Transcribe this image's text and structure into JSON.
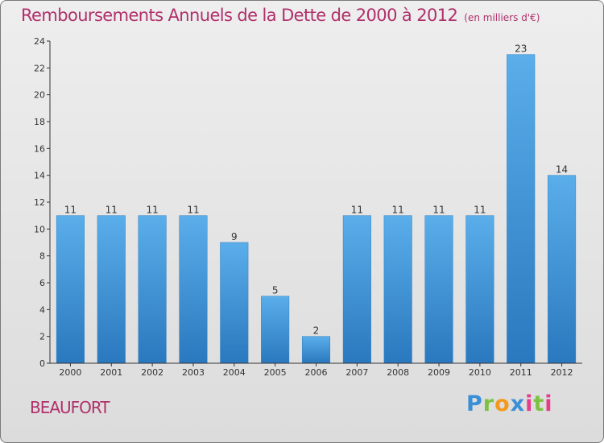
{
  "chart_data": {
    "type": "bar",
    "title": "Remboursements Annuels de la Dette de 2000 à 2012",
    "subtitle": "(en milliers d'€)",
    "categories": [
      "2000",
      "2001",
      "2002",
      "2003",
      "2004",
      "2005",
      "2006",
      "2007",
      "2008",
      "2009",
      "2010",
      "2011",
      "2012"
    ],
    "values": [
      11,
      11,
      11,
      11,
      9,
      5,
      2,
      11,
      11,
      11,
      11,
      23,
      14
    ],
    "yticks": [
      0,
      2,
      4,
      6,
      8,
      10,
      12,
      14,
      16,
      18,
      20,
      22,
      24
    ],
    "ylim": [
      0,
      24
    ],
    "grid": false,
    "bar_color": "#4a9fe0"
  },
  "footer": {
    "town": "BEAUFORT",
    "logo_letters": [
      "P",
      "r",
      "o",
      "x",
      "i",
      "t",
      "i"
    ],
    "logo_colors": [
      "#3a8fd6",
      "#7cc242",
      "#f39a1e",
      "#3a8fd6",
      "#e63c8c",
      "#7cc242",
      "#e63c8c"
    ]
  }
}
